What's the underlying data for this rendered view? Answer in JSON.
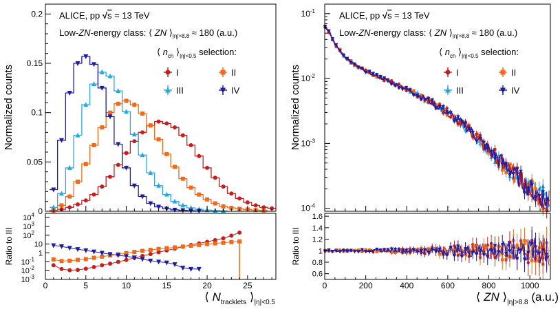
{
  "chart_data": [
    {
      "panel": "left-top",
      "type": "line",
      "style": "step-histogram",
      "title": "ALICE, pp √s = 13 TeV",
      "header": {
        "line1": {
          "pre": "ALICE, pp ",
          "sqrt": "√",
          "s": "s",
          "post": " = 13 TeV"
        },
        "line2": {
          "pre": "Low-",
          "zn": "ZN",
          "mid": "-energy class: ⟨ ",
          "zn2": "ZN",
          "post": " ⟩",
          "sub": "|η|>8.8",
          "tail": " ≈ 180 (a.u.)"
        },
        "line3": {
          "pre": "⟨ ",
          "n": "n",
          "sub1": "ch",
          "mid": " ⟩",
          "sub2": "|η|<0.5",
          "post": " selection:"
        }
      },
      "legend_position": "top-right",
      "legend": [
        "I",
        "II",
        "III",
        "IV"
      ],
      "xlabel": {
        "pre": "⟨ ",
        "n": "N",
        "sub1": "tracklets",
        "mid": " ⟩",
        "sub2": "|η|<0.5"
      },
      "ylabel": "Normalized counts",
      "xlim": [
        0,
        28.5
      ],
      "ylim": [
        0,
        0.21
      ],
      "xticks": [
        "0",
        "5",
        "10",
        "15",
        "20",
        "25"
      ],
      "yticks": [
        "0",
        "0.05",
        "0.1",
        "0.15",
        "0.2"
      ],
      "series": [
        {
          "name": "I",
          "color": "#c41e1e",
          "marker": "circle",
          "x": [
            1,
            2,
            3,
            4,
            5,
            6,
            7,
            8,
            9,
            10,
            11,
            12,
            13,
            14,
            15,
            16,
            17,
            18,
            19,
            20,
            21,
            22,
            23,
            24,
            25,
            26,
            27,
            28
          ],
          "values": [
            0.0005,
            0.002,
            0.004,
            0.007,
            0.011,
            0.017,
            0.025,
            0.035,
            0.047,
            0.059,
            0.071,
            0.08,
            0.087,
            0.091,
            0.089,
            0.085,
            0.077,
            0.067,
            0.056,
            0.044,
            0.034,
            0.025,
            0.018,
            0.013,
            0.009,
            0.006,
            0.004,
            0.003
          ]
        },
        {
          "name": "II",
          "color": "#f06a1a",
          "marker": "square",
          "x": [
            1,
            2,
            3,
            4,
            5,
            6,
            7,
            8,
            9,
            10,
            11,
            12,
            13,
            14,
            15,
            16,
            17,
            18,
            19,
            20,
            21,
            22,
            23,
            24,
            25,
            26,
            27
          ],
          "values": [
            0.001,
            0.006,
            0.015,
            0.03,
            0.048,
            0.067,
            0.085,
            0.1,
            0.109,
            0.112,
            0.108,
            0.099,
            0.087,
            0.073,
            0.058,
            0.045,
            0.033,
            0.024,
            0.017,
            0.012,
            0.008,
            0.005,
            0.0035,
            0.0025,
            0.0018,
            0.0012,
            0.0008
          ]
        },
        {
          "name": "III",
          "color": "#29a8e0",
          "marker": "triangle-up",
          "x": [
            1,
            2,
            3,
            4,
            5,
            6,
            7,
            8,
            9,
            10,
            11,
            12,
            13,
            14,
            15,
            16,
            17,
            18,
            19,
            20,
            21,
            22
          ],
          "values": [
            0.004,
            0.018,
            0.044,
            0.077,
            0.108,
            0.129,
            0.141,
            0.137,
            0.122,
            0.101,
            0.078,
            0.057,
            0.039,
            0.026,
            0.017,
            0.01,
            0.006,
            0.0035,
            0.002,
            0.0012,
            0.0007,
            0.0004
          ]
        },
        {
          "name": "IV",
          "color": "#1c1ca8",
          "marker": "triangle-down",
          "x": [
            1,
            2,
            3,
            4,
            5,
            6,
            7,
            8,
            9,
            10,
            11,
            12,
            13,
            14,
            15,
            16,
            17,
            18,
            19
          ],
          "values": [
            0.022,
            0.072,
            0.12,
            0.15,
            0.157,
            0.149,
            0.125,
            0.096,
            0.068,
            0.044,
            0.026,
            0.015,
            0.008,
            0.0045,
            0.0025,
            0.0015,
            0.001,
            0.0006,
            0.0004
          ]
        }
      ]
    },
    {
      "panel": "left-bottom",
      "type": "scatter",
      "ylabel": "Ratio to III",
      "yscale": "log",
      "xlim": [
        0,
        28.5
      ],
      "ylim": [
        0.001,
        30000
      ],
      "xticks": [
        "0",
        "5",
        "10",
        "15",
        "20",
        "25"
      ],
      "yticks": [
        {
          "base": "10",
          "exp": "-3"
        },
        {
          "base": "10",
          "exp": "-2"
        },
        {
          "base": "10",
          "exp": "-1"
        },
        {
          "base": "1",
          "exp": ""
        },
        {
          "base": "10",
          "exp": ""
        },
        {
          "base": "10",
          "exp": "2"
        },
        {
          "base": "10",
          "exp": "3"
        },
        {
          "base": "10",
          "exp": "4"
        }
      ],
      "series": [
        {
          "name": "I",
          "color": "#c41e1e",
          "marker": "circle",
          "x": [
            1,
            2,
            3,
            4,
            5,
            6,
            7,
            8,
            9,
            10,
            11,
            12,
            13,
            14,
            15,
            16,
            17,
            18,
            19,
            20,
            21,
            22,
            23,
            24
          ],
          "values": [
            0.04,
            0.015,
            0.011,
            0.012,
            0.016,
            0.025,
            0.04,
            0.06,
            0.095,
            0.16,
            0.27,
            0.45,
            0.75,
            1.2,
            1.9,
            3.0,
            5.0,
            8.0,
            12,
            18,
            28,
            45,
            90,
            200
          ]
        },
        {
          "name": "II",
          "color": "#f06a1a",
          "marker": "square",
          "x": [
            1,
            2,
            3,
            4,
            5,
            6,
            7,
            8,
            9,
            10,
            11,
            12,
            13,
            14,
            15,
            16,
            17,
            18,
            19,
            20,
            21,
            22,
            23,
            24
          ],
          "values": [
            0.18,
            0.12,
            0.13,
            0.16,
            0.2,
            0.28,
            0.38,
            0.52,
            0.7,
            0.95,
            1.3,
            1.7,
            2.2,
            2.8,
            3.4,
            4.2,
            5.2,
            6.5,
            8,
            10,
            12,
            14,
            17,
            20
          ]
        },
        {
          "name": "IV",
          "color": "#1c1ca8",
          "marker": "triangle-down",
          "x": [
            1,
            2,
            3,
            4,
            5,
            6,
            7,
            8,
            9,
            10,
            11,
            12,
            13,
            14,
            15,
            16,
            17,
            18,
            19
          ],
          "values": [
            7.0,
            5.5,
            3.6,
            2.6,
            1.9,
            1.4,
            1.0,
            0.72,
            0.55,
            0.42,
            0.3,
            0.2,
            0.13,
            0.1,
            0.08,
            0.05,
            0.02,
            0.015,
            0.015
          ]
        }
      ]
    },
    {
      "panel": "right-top",
      "type": "scatter",
      "header": {
        "line1": {
          "pre": "ALICE, pp ",
          "sqrt": "√",
          "s": "s",
          "post": " = 13 TeV"
        },
        "line2": {
          "pre": "Low-",
          "zn": "ZN",
          "mid": "-energy class: ⟨ ",
          "zn2": "ZN",
          "post": " ⟩",
          "sub": "|η|>8.8",
          "tail": " ≈ 180 (a.u.)"
        },
        "line3": {
          "pre": "⟨ ",
          "n": "n",
          "sub1": "ch",
          "mid": " ⟩",
          "sub2": "|η|<0.5",
          "post": " selection:"
        }
      },
      "legend_position": "top-right",
      "legend": [
        "I",
        "II",
        "III",
        "IV"
      ],
      "ylabel": "Normalized counts",
      "xlabel": {
        "pre": "⟨ ",
        "zn": "ZN",
        "mid": " ⟩",
        "sub": "|η|>8.8",
        "post": " (a.u.)"
      },
      "yscale": "log",
      "xlim": [
        0,
        1100
      ],
      "ylim": [
        9e-05,
        0.14
      ],
      "xticks": [
        "0",
        "200",
        "400",
        "600",
        "800",
        "1000"
      ],
      "yticks": [
        {
          "base": "10",
          "exp": "-4"
        },
        {
          "base": "10",
          "exp": "-3"
        },
        {
          "base": "10",
          "exp": "-2"
        },
        {
          "base": "10",
          "exp": "-1"
        }
      ],
      "curve_points": [
        {
          "x": 0,
          "y": 0.065
        },
        {
          "x": 25,
          "y": 0.05
        },
        {
          "x": 50,
          "y": 0.034
        },
        {
          "x": 100,
          "y": 0.021
        },
        {
          "x": 150,
          "y": 0.016
        },
        {
          "x": 200,
          "y": 0.013
        },
        {
          "x": 300,
          "y": 0.0095
        },
        {
          "x": 400,
          "y": 0.0068
        },
        {
          "x": 500,
          "y": 0.0047
        },
        {
          "x": 600,
          "y": 0.003
        },
        {
          "x": 700,
          "y": 0.0017
        },
        {
          "x": 800,
          "y": 0.0008
        },
        {
          "x": 900,
          "y": 0.0004
        },
        {
          "x": 1000,
          "y": 0.0002
        },
        {
          "x": 1100,
          "y": 0.00012
        }
      ],
      "series": [
        {
          "name": "I",
          "color": "#c41e1e",
          "marker": "circle"
        },
        {
          "name": "II",
          "color": "#f06a1a",
          "marker": "square"
        },
        {
          "name": "III",
          "color": "#29a8e0",
          "marker": "triangle-up"
        },
        {
          "name": "IV",
          "color": "#1c1ca8",
          "marker": "triangle-down"
        }
      ]
    },
    {
      "panel": "right-bottom",
      "type": "scatter",
      "ylabel": "Ratio to III",
      "xlim": [
        0,
        1100
      ],
      "ylim": [
        0.5,
        1.65
      ],
      "xticks": [
        "0",
        "200",
        "400",
        "600",
        "800",
        "1000"
      ],
      "yticks": [
        "0.6",
        "0.8",
        "1",
        "1.2",
        "1.4",
        "1.6"
      ],
      "reference_value": 1.0,
      "series": [
        {
          "name": "I",
          "color": "#c41e1e",
          "marker": "circle"
        },
        {
          "name": "II",
          "color": "#f06a1a",
          "marker": "square"
        },
        {
          "name": "IV",
          "color": "#1c1ca8",
          "marker": "triangle-down"
        }
      ]
    }
  ]
}
